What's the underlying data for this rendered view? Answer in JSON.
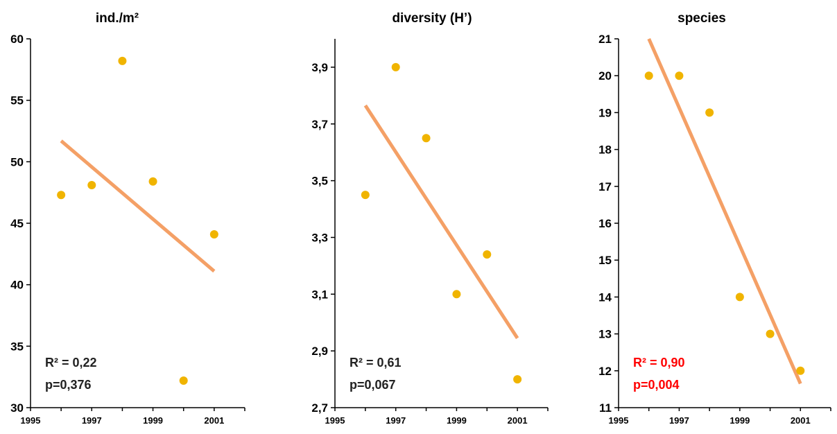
{
  "colors": {
    "point": "#f0b400",
    "trend": "#f4a066",
    "axis": "#000000",
    "stat_default": "#222222",
    "stat_highlight": "#ff0000"
  },
  "chart_data": [
    {
      "type": "scatter",
      "title": "ind./m²",
      "xlim": [
        1995,
        2002
      ],
      "xticks": [
        "1995",
        "1997",
        "1999",
        "2001"
      ],
      "ylim": [
        30,
        60
      ],
      "yticks": [
        "30",
        "35",
        "40",
        "45",
        "50",
        "55",
        "60"
      ],
      "x": [
        1996,
        1997,
        1998,
        1999,
        2000,
        2001
      ],
      "y": [
        47.3,
        48.1,
        58.2,
        48.4,
        32.2,
        44.1
      ],
      "trend": {
        "x": [
          1996,
          2001
        ],
        "y": [
          51.7,
          41.1
        ]
      },
      "r2": "R² = 0,22",
      "p": "p=0,376",
      "stat_color": "#222222"
    },
    {
      "type": "scatter",
      "title": "diversity (H’)",
      "xlim": [
        1995,
        2002
      ],
      "xticks": [
        "1995",
        "1997",
        "1999",
        "2001"
      ],
      "ylim": [
        2.7,
        4.0
      ],
      "yticks": [
        "2,7",
        "2,9",
        "3,1",
        "3,3",
        "3,5",
        "3,7",
        "3,9"
      ],
      "x": [
        1996,
        1997,
        1998,
        1999,
        2000,
        2001
      ],
      "y": [
        3.45,
        3.9,
        3.65,
        3.1,
        3.24,
        2.8
      ],
      "trend": {
        "x": [
          1996,
          2001
        ],
        "y": [
          3.765,
          2.945
        ]
      },
      "r2": "R² = 0,61",
      "p": "p=0,067",
      "stat_color": "#222222"
    },
    {
      "type": "scatter",
      "title": "species",
      "xlim": [
        1995,
        2002
      ],
      "xticks": [
        "1995",
        "1997",
        "1999",
        "2001"
      ],
      "ylim": [
        11,
        21
      ],
      "yticks": [
        "11",
        "12",
        "13",
        "14",
        "15",
        "16",
        "17",
        "18",
        "19",
        "20",
        "21"
      ],
      "x": [
        1996,
        1997,
        1998,
        1999,
        2000,
        2001
      ],
      "y": [
        20,
        20,
        19,
        14,
        13,
        12
      ],
      "trend": {
        "x": [
          1996,
          2001
        ],
        "y": [
          21.0,
          11.65
        ]
      },
      "r2": "R² = 0,90",
      "p": "p=0,004",
      "stat_color": "#ff0000"
    }
  ]
}
